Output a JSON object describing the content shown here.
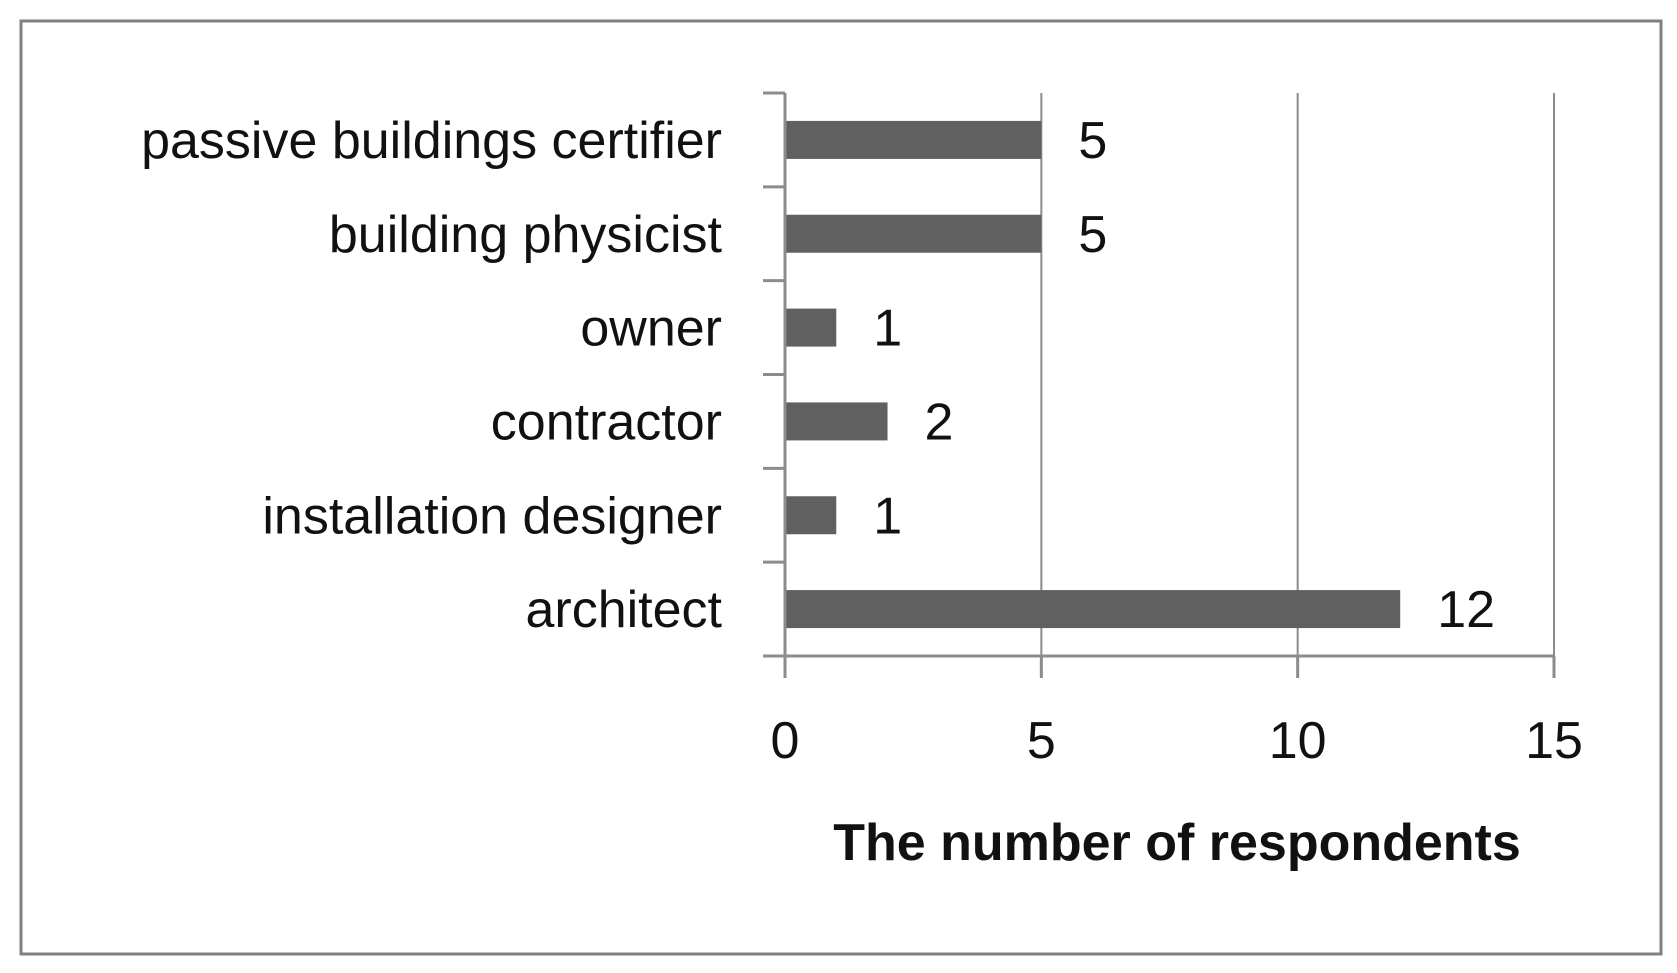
{
  "chart_data": {
    "type": "bar",
    "orientation": "horizontal",
    "categories": [
      "passive buildings certifier",
      "building physicist",
      "owner",
      "contractor",
      "installation designer",
      "architect"
    ],
    "values": [
      5,
      5,
      1,
      2,
      1,
      12
    ],
    "xlabel": "The number of respondents",
    "xlim": [
      0,
      15
    ],
    "xticks": [
      0,
      5,
      10,
      15
    ],
    "grid": "vertical",
    "data_labels": true,
    "bar_color": "#606060",
    "grid_color": "#8c8c8c",
    "text_color": "#111111"
  }
}
